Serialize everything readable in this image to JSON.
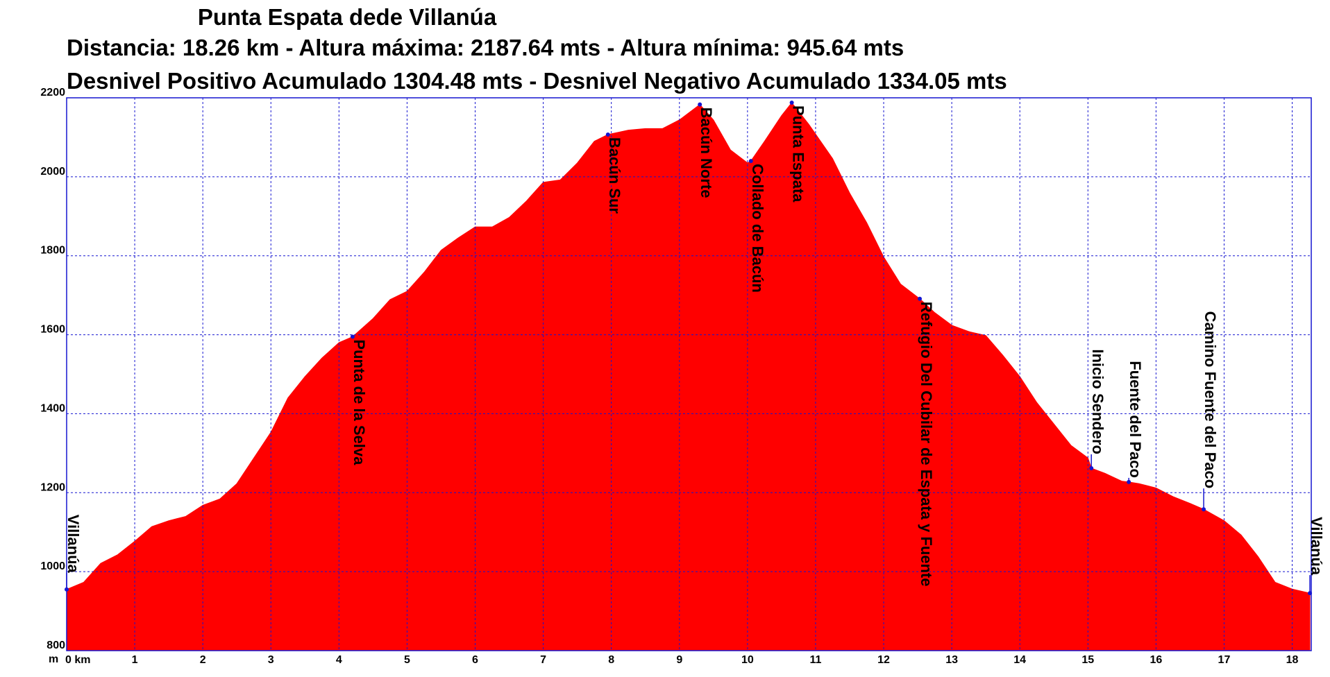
{
  "chart_data": {
    "type": "area",
    "title": "Punta Espata dede Villanúa",
    "subtitle": [
      "Distancia: 18.26 km - Altura máxima: 2187.64 mts - Altura mínima: 945.64 mts",
      "Desnivel Positivo Acumulado 1304.48 mts - Desnivel Negativo Acumulado 1334.05 mts"
    ],
    "y_unit": "m",
    "color": "#ff0000",
    "grid": true,
    "x": [
      0,
      0.25,
      0.5,
      0.75,
      1,
      1.25,
      1.5,
      1.75,
      2,
      2.25,
      2.5,
      2.75,
      3,
      3.25,
      3.5,
      3.75,
      4,
      4.2,
      4.5,
      4.75,
      5,
      5.25,
      5.5,
      5.75,
      6,
      6.25,
      6.5,
      6.75,
      7,
      7.25,
      7.5,
      7.75,
      7.95,
      8.25,
      8.5,
      8.75,
      9,
      9.3,
      9.5,
      9.75,
      10,
      10.05,
      10.25,
      10.5,
      10.65,
      10.9,
      11.25,
      11.5,
      11.75,
      12,
      12.25,
      12.53,
      12.75,
      13,
      13.25,
      13.5,
      13.75,
      14,
      14.25,
      14.5,
      14.75,
      15,
      15.05,
      15.25,
      15.5,
      15.6,
      15.75,
      16,
      16.25,
      16.5,
      16.7,
      17,
      17.25,
      17.5,
      17.75,
      18,
      18.26
    ],
    "values": [
      955,
      973,
      1021,
      1043,
      1077,
      1114,
      1129,
      1140,
      1168,
      1184,
      1223,
      1288,
      1353,
      1440,
      1494,
      1541,
      1580,
      1595,
      1641,
      1689,
      1710,
      1758,
      1814,
      1845,
      1873,
      1873,
      1897,
      1938,
      1986,
      1992,
      2035,
      2090,
      2107,
      2118,
      2122,
      2122,
      2144,
      2183,
      2144,
      2068,
      2035,
      2040,
      2090,
      2155,
      2187.64,
      2133,
      2046,
      1959,
      1884,
      1797,
      1728,
      1691,
      1656,
      1624,
      1608,
      1598,
      1548,
      1494,
      1428,
      1374,
      1320,
      1288,
      1262,
      1249,
      1229,
      1227,
      1223,
      1212,
      1190,
      1173,
      1158,
      1129,
      1093,
      1038,
      973,
      956,
      945.64
    ],
    "waypoints": [
      {
        "label": "Villanúa",
        "x": 0,
        "elevation": 955
      },
      {
        "label": "Punta de la Selva",
        "x": 4.2,
        "elevation": 1595
      },
      {
        "label": "Bacún Sur",
        "x": 7.95,
        "elevation": 2107
      },
      {
        "label": "Bacún Norte",
        "x": 9.3,
        "elevation": 2183
      },
      {
        "label": "Collado de Bacún",
        "x": 10.05,
        "elevation": 2040
      },
      {
        "label": "Punta Espata",
        "x": 10.65,
        "elevation": 2187.64
      },
      {
        "label": "Refugio Del Cubilar de Espata y Fuente",
        "x": 12.53,
        "elevation": 1691
      },
      {
        "label": "Inicio Sendero",
        "x": 15.05,
        "elevation": 1262
      },
      {
        "label": "Fuente del Paco",
        "x": 15.6,
        "elevation": 1227
      },
      {
        "label": "Camino Fuente del Paco",
        "x": 16.7,
        "elevation": 1158
      },
      {
        "label": "Villanúa",
        "x": 18.26,
        "elevation": 945.64
      }
    ],
    "xlim": [
      0,
      18.28
    ],
    "ylim": [
      800,
      2200
    ],
    "xticks": [
      {
        "value": 0,
        "label": "0 km"
      },
      1,
      2,
      3,
      4,
      5,
      6,
      7,
      8,
      9,
      10,
      11,
      12,
      13,
      14,
      15,
      16,
      17,
      18
    ],
    "yticks": [
      800,
      1000,
      1200,
      1400,
      1600,
      1800,
      2000,
      2200
    ]
  }
}
